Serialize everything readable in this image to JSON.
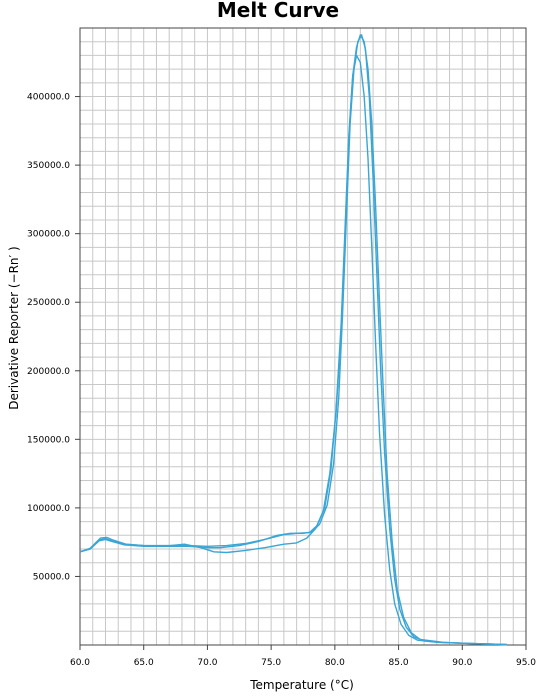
{
  "chart_data": {
    "type": "line",
    "title": "Melt Curve",
    "xlabel": "Temperature (°C)",
    "ylabel": "Derivative Reporter (−Rn′ )",
    "xlim": [
      60.0,
      95.0
    ],
    "ylim": [
      0,
      450000
    ],
    "x_ticks": [
      "60.0",
      "65.0",
      "70.0",
      "75.0",
      "80.0",
      "85.0",
      "90.0",
      "95.0"
    ],
    "y_ticks": [
      "50000.0",
      "100000.0",
      "150000.0",
      "200000.0",
      "250000.0",
      "300000.0",
      "350000.0",
      "400000.0"
    ],
    "grid": true,
    "legend": "none",
    "line_color": "#3aa6d6",
    "series": [
      {
        "points": [
          [
            60.0,
            68000
          ],
          [
            60.8,
            70000
          ],
          [
            61.5,
            76000
          ],
          [
            62.0,
            77000
          ],
          [
            62.5,
            75500
          ],
          [
            63.5,
            73000
          ],
          [
            65,
            72000
          ],
          [
            67,
            72000
          ],
          [
            68.5,
            72000
          ],
          [
            70,
            71000
          ],
          [
            71,
            71000
          ],
          [
            72.5,
            72500
          ],
          [
            74,
            75500
          ],
          [
            75.5,
            80000
          ],
          [
            76.5,
            81500
          ],
          [
            77.5,
            81500
          ],
          [
            78.2,
            82500
          ],
          [
            78.8,
            88000
          ],
          [
            79.4,
            102000
          ],
          [
            79.9,
            132000
          ],
          [
            80.3,
            180000
          ],
          [
            80.6,
            240000
          ],
          [
            80.9,
            310000
          ],
          [
            81.2,
            380000
          ],
          [
            81.5,
            420000
          ],
          [
            81.8,
            440000
          ],
          [
            82.1,
            445000
          ],
          [
            82.4,
            435000
          ],
          [
            82.7,
            400000
          ],
          [
            83.0,
            340000
          ],
          [
            83.3,
            270000
          ],
          [
            83.6,
            200000
          ],
          [
            83.9,
            140000
          ],
          [
            84.3,
            85000
          ],
          [
            84.7,
            48000
          ],
          [
            85.1,
            26000
          ],
          [
            85.6,
            13000
          ],
          [
            86.2,
            6000
          ],
          [
            87,
            3000
          ],
          [
            88.5,
            1800
          ],
          [
            90.5,
            1200
          ],
          [
            92,
            700
          ],
          [
            93.5,
            300
          ]
        ]
      },
      {
        "points": [
          [
            60.0,
            68000
          ],
          [
            60.8,
            70500
          ],
          [
            61.6,
            78000
          ],
          [
            62.1,
            78500
          ],
          [
            62.6,
            76500
          ],
          [
            63.6,
            73500
          ],
          [
            65,
            72500
          ],
          [
            66.5,
            72000
          ],
          [
            68.2,
            73500
          ],
          [
            69.5,
            71000
          ],
          [
            70.5,
            68000
          ],
          [
            71.5,
            67500
          ],
          [
            73,
            69000
          ],
          [
            74.5,
            71000
          ],
          [
            76,
            73500
          ],
          [
            77,
            74500
          ],
          [
            77.8,
            78000
          ],
          [
            78.5,
            85000
          ],
          [
            79.1,
            98000
          ],
          [
            79.6,
            125000
          ],
          [
            80.1,
            170000
          ],
          [
            80.5,
            230000
          ],
          [
            80.8,
            300000
          ],
          [
            81.1,
            370000
          ],
          [
            81.4,
            415000
          ],
          [
            81.7,
            430000
          ],
          [
            82.0,
            425000
          ],
          [
            82.3,
            400000
          ],
          [
            82.6,
            355000
          ],
          [
            82.9,
            290000
          ],
          [
            83.2,
            220000
          ],
          [
            83.5,
            155000
          ],
          [
            83.9,
            95000
          ],
          [
            84.3,
            55000
          ],
          [
            84.7,
            30000
          ],
          [
            85.2,
            15000
          ],
          [
            85.8,
            7000
          ],
          [
            86.5,
            3500
          ],
          [
            88,
            2000
          ],
          [
            90,
            1300
          ],
          [
            92,
            700
          ],
          [
            93.5,
            300
          ]
        ]
      },
      {
        "points": [
          [
            60.0,
            68000
          ],
          [
            60.8,
            70000
          ],
          [
            61.5,
            76500
          ],
          [
            62.0,
            77500
          ],
          [
            62.5,
            76000
          ],
          [
            63.5,
            73500
          ],
          [
            65,
            72500
          ],
          [
            67,
            72500
          ],
          [
            68.5,
            72500
          ],
          [
            70,
            72000
          ],
          [
            71.5,
            72500
          ],
          [
            73,
            74000
          ],
          [
            74.5,
            77000
          ],
          [
            76,
            80500
          ],
          [
            77,
            81500
          ],
          [
            78,
            82000
          ],
          [
            78.6,
            87000
          ],
          [
            79.2,
            100000
          ],
          [
            79.7,
            128000
          ],
          [
            80.1,
            172000
          ],
          [
            80.5,
            235000
          ],
          [
            80.8,
            305000
          ],
          [
            81.1,
            372000
          ],
          [
            81.4,
            415000
          ],
          [
            81.7,
            436000
          ],
          [
            82.0,
            445000
          ],
          [
            82.3,
            440000
          ],
          [
            82.6,
            420000
          ],
          [
            82.9,
            380000
          ],
          [
            83.2,
            320000
          ],
          [
            83.5,
            250000
          ],
          [
            83.8,
            185000
          ],
          [
            84.1,
            125000
          ],
          [
            84.5,
            75000
          ],
          [
            84.9,
            40000
          ],
          [
            85.4,
            20000
          ],
          [
            86,
            9000
          ],
          [
            86.7,
            4000
          ],
          [
            88.5,
            2000
          ],
          [
            90.5,
            1200
          ],
          [
            92,
            700
          ],
          [
            93.5,
            300
          ]
        ]
      }
    ]
  }
}
